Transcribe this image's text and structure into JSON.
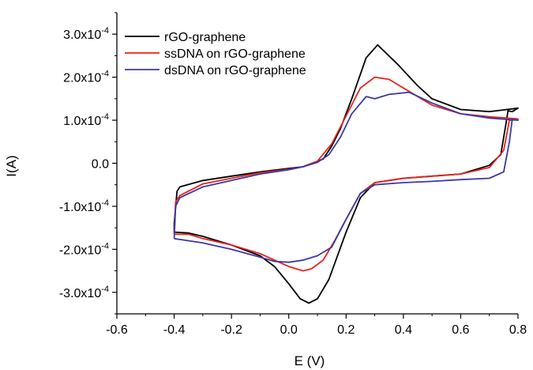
{
  "chart_data": {
    "type": "line",
    "title": "",
    "xlabel": "E (V)",
    "ylabel": "I(A)",
    "xlim": [
      -0.6,
      0.8
    ],
    "ylim": [
      -0.00035,
      0.00035
    ],
    "x_ticks": [
      -0.6,
      -0.4,
      -0.2,
      0.0,
      0.2,
      0.4,
      0.6,
      0.8
    ],
    "x_tick_labels": [
      "-0.6",
      "-0.4",
      "-0.2",
      "0.0",
      "0.2",
      "0.4",
      "0.6",
      "0.8"
    ],
    "y_ticks": [
      0.0003,
      0.0002,
      0.0001,
      0.0,
      -0.0001,
      -0.0002,
      -0.0003
    ],
    "y_tick_labels": [
      {
        "mantissa": "3.0x10",
        "exp": "-4"
      },
      {
        "mantissa": "2.0x10",
        "exp": "-4"
      },
      {
        "mantissa": "1.0x10",
        "exp": "-4"
      },
      {
        "mantissa": "0.0",
        "exp": ""
      },
      {
        "mantissa": "-1.0x10",
        "exp": "-4"
      },
      {
        "mantissa": "-2.0x10",
        "exp": "-4"
      },
      {
        "mantissa": "-3.0x10",
        "exp": "-4"
      }
    ],
    "grid": false,
    "legend_position": "top-left",
    "series": [
      {
        "name": "rGO-graphene",
        "color": "#000000",
        "points": [
          [
            -0.4,
            -0.00016
          ],
          [
            -0.35,
            -0.000162
          ],
          [
            -0.3,
            -0.00017
          ],
          [
            -0.2,
            -0.00019
          ],
          [
            -0.1,
            -0.000215
          ],
          [
            -0.05,
            -0.00024
          ],
          [
            0.0,
            -0.00028
          ],
          [
            0.04,
            -0.000315
          ],
          [
            0.07,
            -0.000325
          ],
          [
            0.1,
            -0.000315
          ],
          [
            0.14,
            -0.00027
          ],
          [
            0.2,
            -0.00016
          ],
          [
            0.25,
            -8e-05
          ],
          [
            0.3,
            -4.5e-05
          ],
          [
            0.4,
            -3.5e-05
          ],
          [
            0.5,
            -3e-05
          ],
          [
            0.6,
            -2.5e-05
          ],
          [
            0.7,
            -5e-06
          ],
          [
            0.74,
            2e-05
          ],
          [
            0.76,
            0.0001
          ],
          [
            0.765,
            0.000122
          ],
          [
            0.78,
            0.00012
          ],
          [
            0.8,
            0.000128
          ],
          [
            0.7,
            0.00012
          ],
          [
            0.6,
            0.000125
          ],
          [
            0.5,
            0.00015
          ],
          [
            0.45,
            0.00018
          ],
          [
            0.38,
            0.00023
          ],
          [
            0.31,
            0.000275
          ],
          [
            0.27,
            0.000245
          ],
          [
            0.22,
            0.00015
          ],
          [
            0.18,
            8e-05
          ],
          [
            0.15,
            4e-05
          ],
          [
            0.12,
            1e-05
          ],
          [
            0.05,
            -8e-06
          ],
          [
            0.0,
            -1.2e-05
          ],
          [
            -0.1,
            -2e-05
          ],
          [
            -0.2,
            -3e-05
          ],
          [
            -0.3,
            -4e-05
          ],
          [
            -0.38,
            -5.5e-05
          ],
          [
            -0.39,
            -6.5e-05
          ],
          [
            -0.4,
            -0.00014
          ],
          [
            -0.4,
            -0.00016
          ]
        ]
      },
      {
        "name": "ssDNA on rGO-graphene",
        "color": "#e8231e",
        "points": [
          [
            -0.4,
            -0.000165
          ],
          [
            -0.35,
            -0.000165
          ],
          [
            -0.3,
            -0.000175
          ],
          [
            -0.2,
            -0.00019
          ],
          [
            -0.1,
            -0.00021
          ],
          [
            -0.05,
            -0.000225
          ],
          [
            0.0,
            -0.00024
          ],
          [
            0.05,
            -0.00025
          ],
          [
            0.08,
            -0.000245
          ],
          [
            0.12,
            -0.000225
          ],
          [
            0.16,
            -0.00018
          ],
          [
            0.2,
            -0.00013
          ],
          [
            0.25,
            -7e-05
          ],
          [
            0.3,
            -4.5e-05
          ],
          [
            0.4,
            -3.5e-05
          ],
          [
            0.5,
            -3e-05
          ],
          [
            0.6,
            -2.5e-05
          ],
          [
            0.7,
            -1e-05
          ],
          [
            0.75,
            3e-05
          ],
          [
            0.77,
            0.0001
          ],
          [
            0.78,
            0.0001
          ],
          [
            0.8,
            0.000103
          ],
          [
            0.7,
            0.000108
          ],
          [
            0.6,
            0.000115
          ],
          [
            0.5,
            0.000135
          ],
          [
            0.4,
            0.000175
          ],
          [
            0.35,
            0.000195
          ],
          [
            0.3,
            0.0002
          ],
          [
            0.25,
            0.000175
          ],
          [
            0.2,
            0.00011
          ],
          [
            0.15,
            4.5e-05
          ],
          [
            0.1,
            5e-06
          ],
          [
            0.05,
            -8e-06
          ],
          [
            0.0,
            -1.4e-05
          ],
          [
            -0.1,
            -2.2e-05
          ],
          [
            -0.2,
            -3.5e-05
          ],
          [
            -0.3,
            -4.8e-05
          ],
          [
            -0.38,
            -7.5e-05
          ],
          [
            -0.395,
            -9e-05
          ],
          [
            -0.4,
            -0.000165
          ]
        ]
      },
      {
        "name": "dsDNA on rGO-graphene",
        "color": "#3a3aa6",
        "points": [
          [
            -0.4,
            -0.000175
          ],
          [
            -0.35,
            -0.00018
          ],
          [
            -0.3,
            -0.000185
          ],
          [
            -0.2,
            -0.0002
          ],
          [
            -0.1,
            -0.000218
          ],
          [
            -0.05,
            -0.000228
          ],
          [
            0.0,
            -0.00023
          ],
          [
            0.05,
            -0.000225
          ],
          [
            0.1,
            -0.000215
          ],
          [
            0.15,
            -0.000195
          ],
          [
            0.2,
            -0.00013
          ],
          [
            0.25,
            -7e-05
          ],
          [
            0.3,
            -5e-05
          ],
          [
            0.4,
            -4.5e-05
          ],
          [
            0.5,
            -4.2e-05
          ],
          [
            0.6,
            -3.8e-05
          ],
          [
            0.7,
            -3.5e-05
          ],
          [
            0.75,
            -2e-05
          ],
          [
            0.77,
            5e-05
          ],
          [
            0.78,
            0.000102
          ],
          [
            0.8,
            0.0001
          ],
          [
            0.7,
            0.000105
          ],
          [
            0.6,
            0.000115
          ],
          [
            0.5,
            0.00014
          ],
          [
            0.42,
            0.000165
          ],
          [
            0.35,
            0.00016
          ],
          [
            0.3,
            0.00015
          ],
          [
            0.27,
            0.000155
          ],
          [
            0.22,
            0.000115
          ],
          [
            0.18,
            6e-05
          ],
          [
            0.14,
            2e-05
          ],
          [
            0.1,
            2e-06
          ],
          [
            0.05,
            -8e-06
          ],
          [
            0.0,
            -1.5e-05
          ],
          [
            -0.1,
            -2.5e-05
          ],
          [
            -0.2,
            -4e-05
          ],
          [
            -0.3,
            -5.5e-05
          ],
          [
            -0.38,
            -8e-05
          ],
          [
            -0.395,
            -0.0001
          ],
          [
            -0.4,
            -0.000175
          ]
        ]
      }
    ]
  }
}
